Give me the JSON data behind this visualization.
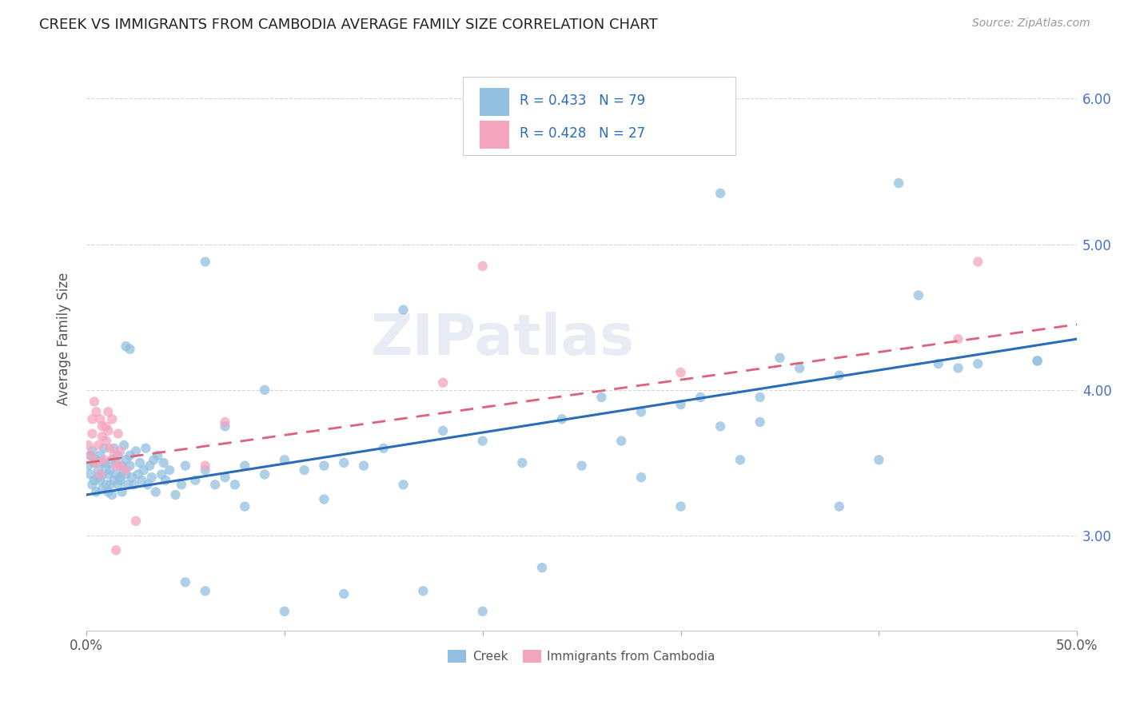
{
  "title": "CREEK VS IMMIGRANTS FROM CAMBODIA AVERAGE FAMILY SIZE CORRELATION CHART",
  "source": "Source: ZipAtlas.com",
  "ylabel": "Average Family Size",
  "xlim": [
    0.0,
    0.5
  ],
  "ylim": [
    2.35,
    6.35
  ],
  "yticks": [
    3.0,
    4.0,
    5.0,
    6.0
  ],
  "xtick_vals": [
    0.0,
    0.1,
    0.2,
    0.3,
    0.4,
    0.5
  ],
  "xtick_labels_shown": {
    "0.0": "0.0%",
    "0.5": "50.0%"
  },
  "blue_color": "#92c0e0",
  "pink_color": "#f4a5be",
  "blue_line_color": "#2b6cb8",
  "pink_line_color": "#e0607a",
  "blue_line": [
    0.0,
    3.28,
    0.5,
    4.35
  ],
  "pink_line": [
    0.0,
    3.5,
    0.5,
    4.45
  ],
  "watermark": "ZIPatlas",
  "creek_points": [
    [
      0.001,
      3.48
    ],
    [
      0.002,
      3.42
    ],
    [
      0.002,
      3.55
    ],
    [
      0.003,
      3.35
    ],
    [
      0.003,
      3.58
    ],
    [
      0.004,
      3.38
    ],
    [
      0.004,
      3.5
    ],
    [
      0.005,
      3.3
    ],
    [
      0.005,
      3.52
    ],
    [
      0.006,
      3.4
    ],
    [
      0.006,
      3.45
    ],
    [
      0.007,
      3.38
    ],
    [
      0.007,
      3.55
    ],
    [
      0.008,
      3.42
    ],
    [
      0.008,
      3.32
    ],
    [
      0.009,
      3.5
    ],
    [
      0.009,
      3.6
    ],
    [
      0.01,
      3.35
    ],
    [
      0.01,
      3.48
    ],
    [
      0.011,
      3.42
    ],
    [
      0.011,
      3.3
    ],
    [
      0.012,
      3.45
    ],
    [
      0.012,
      3.35
    ],
    [
      0.013,
      3.52
    ],
    [
      0.013,
      3.28
    ],
    [
      0.014,
      3.38
    ],
    [
      0.014,
      3.6
    ],
    [
      0.015,
      3.42
    ],
    [
      0.015,
      3.5
    ],
    [
      0.016,
      3.35
    ],
    [
      0.016,
      3.55
    ],
    [
      0.017,
      3.4
    ],
    [
      0.017,
      3.38
    ],
    [
      0.018,
      3.48
    ],
    [
      0.018,
      3.3
    ],
    [
      0.019,
      3.45
    ],
    [
      0.019,
      3.62
    ],
    [
      0.02,
      3.52
    ],
    [
      0.02,
      3.42
    ],
    [
      0.021,
      3.35
    ],
    [
      0.022,
      3.55
    ],
    [
      0.022,
      3.48
    ],
    [
      0.023,
      3.4
    ],
    [
      0.024,
      3.35
    ],
    [
      0.025,
      3.58
    ],
    [
      0.026,
      3.42
    ],
    [
      0.027,
      3.5
    ],
    [
      0.028,
      3.38
    ],
    [
      0.029,
      3.45
    ],
    [
      0.03,
      3.6
    ],
    [
      0.031,
      3.35
    ],
    [
      0.032,
      3.48
    ],
    [
      0.033,
      3.4
    ],
    [
      0.034,
      3.52
    ],
    [
      0.035,
      3.3
    ],
    [
      0.036,
      3.55
    ],
    [
      0.038,
      3.42
    ],
    [
      0.039,
      3.5
    ],
    [
      0.04,
      3.38
    ],
    [
      0.042,
      3.45
    ],
    [
      0.045,
      3.28
    ],
    [
      0.048,
      3.35
    ],
    [
      0.05,
      3.48
    ],
    [
      0.055,
      3.38
    ],
    [
      0.06,
      3.45
    ],
    [
      0.065,
      3.35
    ],
    [
      0.07,
      3.4
    ],
    [
      0.075,
      3.35
    ],
    [
      0.08,
      3.48
    ],
    [
      0.09,
      3.42
    ],
    [
      0.1,
      3.52
    ],
    [
      0.11,
      3.45
    ],
    [
      0.12,
      3.48
    ],
    [
      0.13,
      3.5
    ],
    [
      0.02,
      4.3
    ],
    [
      0.022,
      4.28
    ],
    [
      0.06,
      4.88
    ],
    [
      0.16,
      4.55
    ],
    [
      0.32,
      5.35
    ],
    [
      0.42,
      4.65
    ],
    [
      0.45,
      4.18
    ],
    [
      0.43,
      4.18
    ],
    [
      0.38,
      3.2
    ],
    [
      0.3,
      3.2
    ],
    [
      0.25,
      3.48
    ],
    [
      0.2,
      2.48
    ],
    [
      0.17,
      2.62
    ],
    [
      0.23,
      2.78
    ],
    [
      0.07,
      3.75
    ],
    [
      0.35,
      4.22
    ],
    [
      0.06,
      2.62
    ],
    [
      0.48,
      4.2
    ],
    [
      0.1,
      2.48
    ],
    [
      0.13,
      2.6
    ],
    [
      0.41,
      5.42
    ],
    [
      0.22,
      3.5
    ],
    [
      0.26,
      3.95
    ],
    [
      0.31,
      3.95
    ],
    [
      0.34,
      3.78
    ],
    [
      0.09,
      4.0
    ],
    [
      0.27,
      3.65
    ],
    [
      0.4,
      3.52
    ],
    [
      0.05,
      2.68
    ],
    [
      0.08,
      3.2
    ],
    [
      0.28,
      3.4
    ],
    [
      0.14,
      3.48
    ],
    [
      0.18,
      3.72
    ],
    [
      0.16,
      3.35
    ],
    [
      0.12,
      3.25
    ],
    [
      0.33,
      3.52
    ],
    [
      0.15,
      3.6
    ],
    [
      0.2,
      3.65
    ],
    [
      0.24,
      3.8
    ],
    [
      0.28,
      3.85
    ],
    [
      0.3,
      3.9
    ],
    [
      0.32,
      3.75
    ],
    [
      0.34,
      3.95
    ],
    [
      0.36,
      4.15
    ],
    [
      0.38,
      4.1
    ],
    [
      0.44,
      4.15
    ],
    [
      0.48,
      4.2
    ]
  ],
  "cambodia_points": [
    [
      0.001,
      3.62
    ],
    [
      0.002,
      3.55
    ],
    [
      0.003,
      3.8
    ],
    [
      0.003,
      3.7
    ],
    [
      0.004,
      3.92
    ],
    [
      0.005,
      3.85
    ],
    [
      0.005,
      3.5
    ],
    [
      0.006,
      3.62
    ],
    [
      0.007,
      3.42
    ],
    [
      0.007,
      3.8
    ],
    [
      0.008,
      3.68
    ],
    [
      0.008,
      3.75
    ],
    [
      0.009,
      3.52
    ],
    [
      0.01,
      3.65
    ],
    [
      0.01,
      3.75
    ],
    [
      0.011,
      3.85
    ],
    [
      0.011,
      3.72
    ],
    [
      0.012,
      3.6
    ],
    [
      0.013,
      3.8
    ],
    [
      0.014,
      3.55
    ],
    [
      0.015,
      3.48
    ],
    [
      0.016,
      3.7
    ],
    [
      0.017,
      3.58
    ],
    [
      0.017,
      3.48
    ],
    [
      0.015,
      2.9
    ],
    [
      0.02,
      3.45
    ],
    [
      0.025,
      3.1
    ],
    [
      0.18,
      4.05
    ],
    [
      0.3,
      4.12
    ],
    [
      0.44,
      4.35
    ],
    [
      0.45,
      4.88
    ],
    [
      0.2,
      4.85
    ],
    [
      0.06,
      3.48
    ],
    [
      0.07,
      3.78
    ]
  ]
}
